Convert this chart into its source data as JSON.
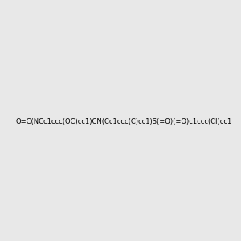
{
  "smiles": "O=C(NCc1ccc(OC)cc1)CN(Cc1ccc(C)cc1)S(=O)(=O)c1ccc(Cl)cc1",
  "image_size": 300,
  "background_color": "#e8e8e8"
}
